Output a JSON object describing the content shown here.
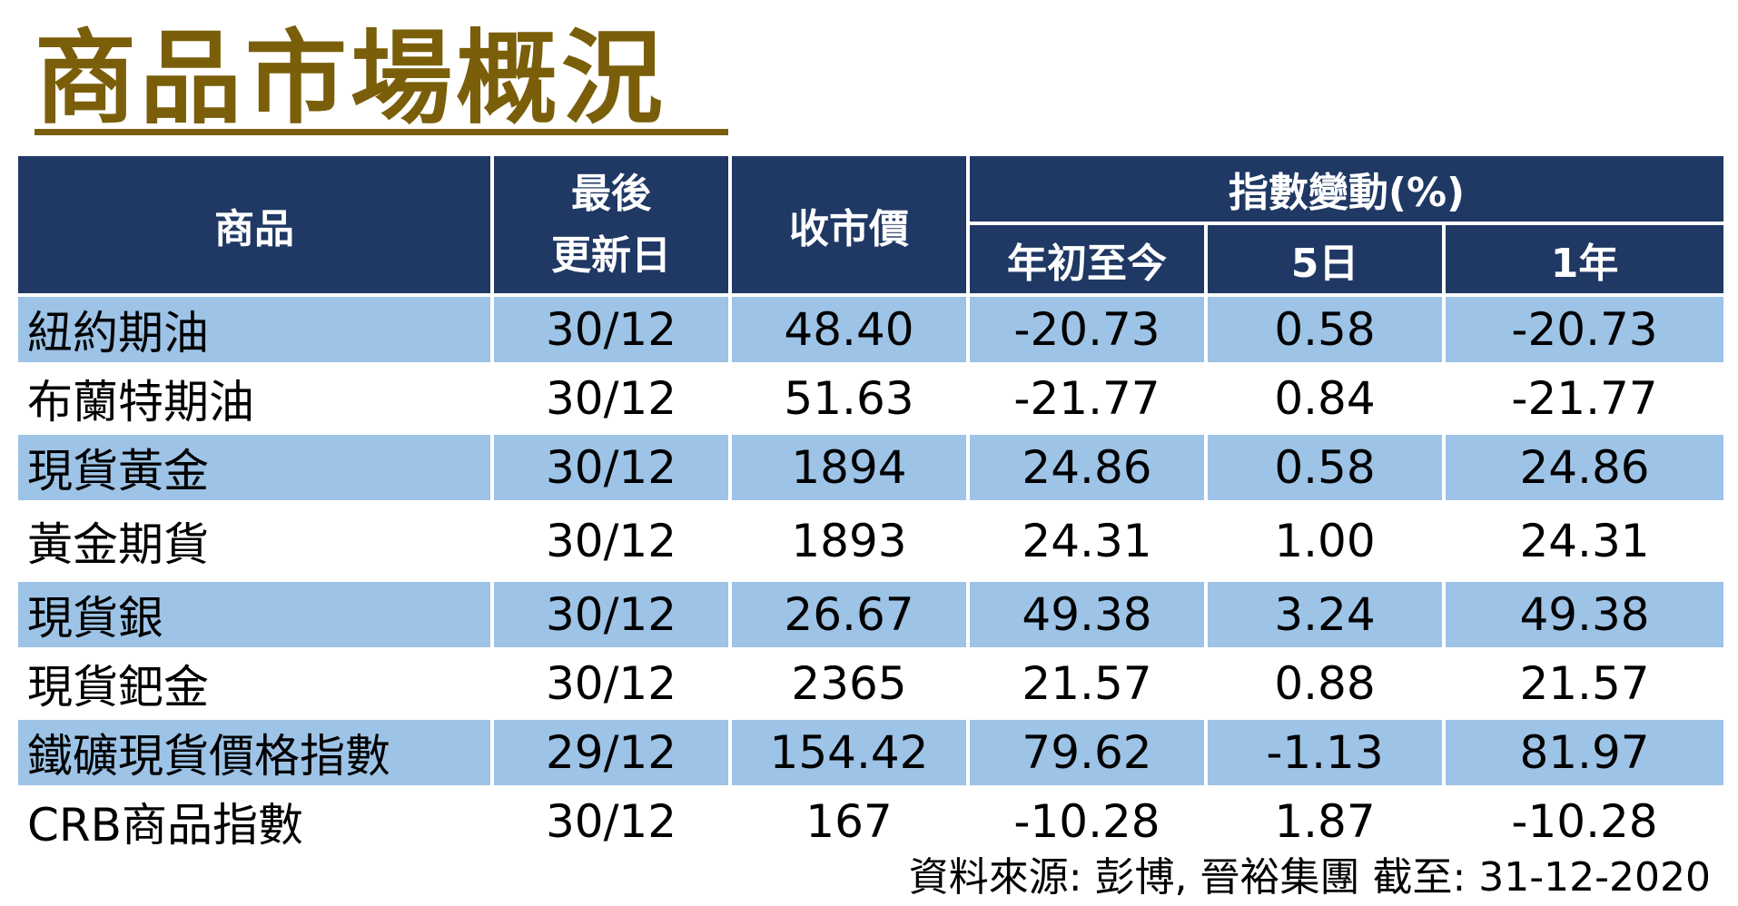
{
  "title": "商品市場概況",
  "headers": {
    "commodity": "商品",
    "last_update_line1": "最後",
    "last_update_line2": "更新日",
    "close": "收市價",
    "change": "指數變動(%)",
    "ytd": "年初至今",
    "five_day": "5日",
    "one_year": "1年"
  },
  "rows": [
    {
      "name": "紐約期油",
      "date": "30/12",
      "close": "48.40",
      "ytd": "-20.73",
      "d5": "0.58",
      "y1": "-20.73"
    },
    {
      "name": "布蘭特期油",
      "date": "30/12",
      "close": "51.63",
      "ytd": "-21.77",
      "d5": "0.84",
      "y1": "-21.77"
    },
    {
      "name": "現貨黃金",
      "date": "30/12",
      "close": "1894",
      "ytd": "24.86",
      "d5": "0.58",
      "y1": "24.86"
    },
    {
      "name": "黃金期貨",
      "date": "30/12",
      "close": "1893",
      "ytd": "24.31",
      "d5": "1.00",
      "y1": "24.31"
    },
    {
      "name": "現貨銀",
      "date": "30/12",
      "close": "26.67",
      "ytd": "49.38",
      "d5": "3.24",
      "y1": "49.38"
    },
    {
      "name": "現貨鈀金",
      "date": "30/12",
      "close": "2365",
      "ytd": "21.57",
      "d5": "0.88",
      "y1": "21.57"
    },
    {
      "name": "鐵礦現貨價格指數",
      "date": "29/12",
      "close": "154.42",
      "ytd": "79.62",
      "d5": "-1.13",
      "y1": "81.97"
    },
    {
      "name": "CRB商品指數",
      "date": "30/12",
      "close": "167",
      "ytd": "-10.28",
      "d5": "1.87",
      "y1": "-10.28"
    }
  ],
  "source": "資料來源: 彭博, 晉裕集團 截至:  31-12-2020",
  "colors": {
    "title": "#7a5e0a",
    "header_bg": "#1f3864",
    "header_text": "#ffffff",
    "row_shade": "#9dc3e6"
  }
}
